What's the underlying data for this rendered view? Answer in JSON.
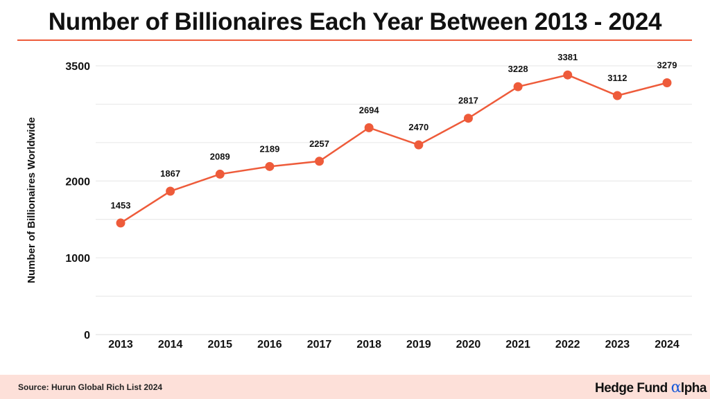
{
  "chart_data": {
    "type": "line",
    "title": "Number of Billionaires Each Year Between 2013 - 2024",
    "xlabel": "",
    "ylabel": "Number of Billionaires Worldwide",
    "categories": [
      "2013",
      "2014",
      "2015",
      "2016",
      "2017",
      "2018",
      "2019",
      "2020",
      "2021",
      "2022",
      "2023",
      "2024"
    ],
    "values": [
      1453,
      1867,
      2089,
      2189,
      2257,
      2694,
      2470,
      2817,
      3228,
      3381,
      3112,
      3279
    ],
    "ylim": [
      0,
      3500
    ],
    "yticks": [
      "0",
      "1000",
      "2000",
      "3500"
    ],
    "gridlines_every": 500,
    "grid": true,
    "color": "#ee5b3a"
  },
  "footer": {
    "source": "Source: Hurun Global Rich List 2024",
    "logo_text": "Hedge Fund Alpha"
  }
}
